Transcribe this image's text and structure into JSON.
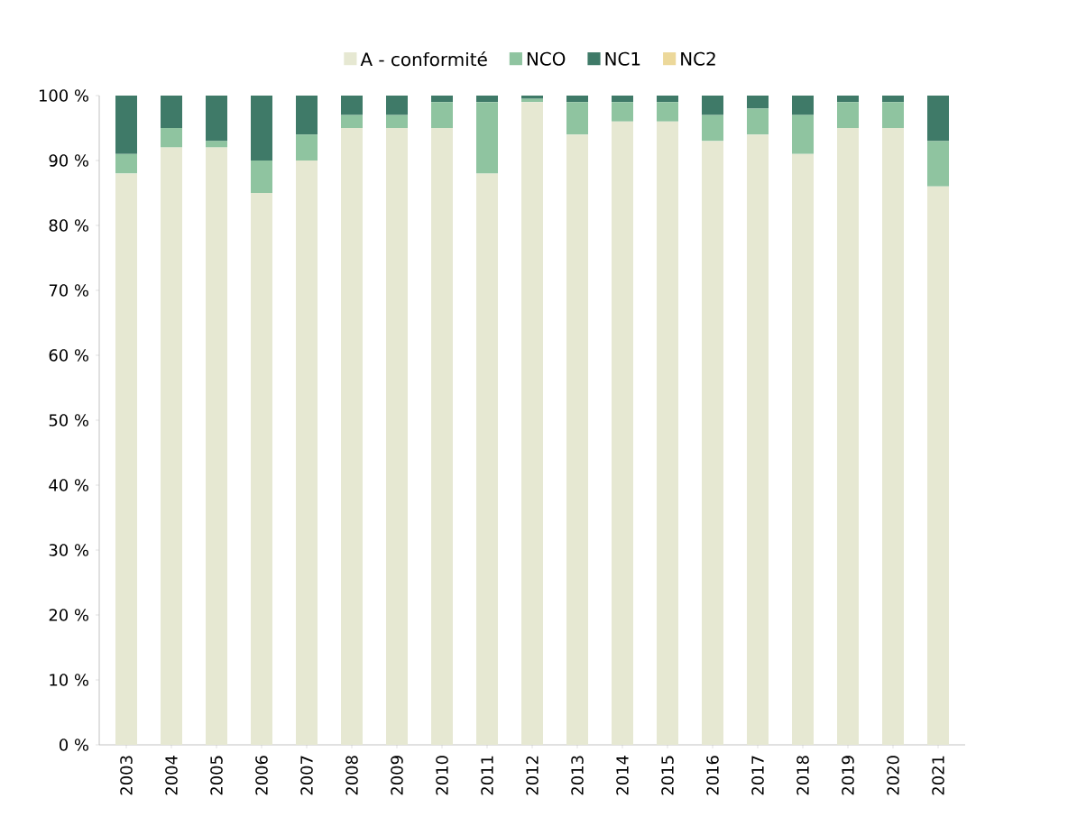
{
  "chart_data": {
    "type": "bar",
    "stacked": true,
    "legend": "top",
    "categories": [
      "2003",
      "2004",
      "2005",
      "2006",
      "2007",
      "2008",
      "2009",
      "2010",
      "2011",
      "2012",
      "2013",
      "2014",
      "2015",
      "2016",
      "2017",
      "2018",
      "2019",
      "2020",
      "2021"
    ],
    "series": [
      {
        "name": "A - conformité",
        "color": "#e6e8d2",
        "values": [
          88,
          92,
          92,
          85,
          90,
          95,
          95,
          95,
          88,
          99,
          94,
          96,
          96,
          93,
          94,
          91,
          95,
          95,
          86
        ]
      },
      {
        "name": "NCO",
        "color": "#8fc4a0",
        "values": [
          3,
          3,
          1,
          5,
          4,
          2,
          2,
          4,
          11,
          0.5,
          5,
          3,
          3,
          4,
          4,
          6,
          4,
          4,
          7
        ]
      },
      {
        "name": "NC1",
        "color": "#3f7a68",
        "values": [
          9,
          5,
          7,
          10,
          6,
          3,
          3,
          1,
          1,
          0.5,
          1,
          1,
          1,
          3,
          2,
          3,
          1,
          1,
          7
        ]
      },
      {
        "name": "NC2",
        "color": "#ecd89a",
        "values": [
          0,
          0,
          0,
          0,
          0,
          0,
          0,
          0,
          0,
          0,
          0,
          0,
          0,
          0,
          0,
          0,
          0,
          0,
          0
        ]
      }
    ],
    "ylim": [
      0,
      100
    ],
    "yticks": [
      {
        "value": 0,
        "label": "0 %"
      },
      {
        "value": 10,
        "label": "10 %"
      },
      {
        "value": 20,
        "label": "20 %"
      },
      {
        "value": 30,
        "label": "30 %"
      },
      {
        "value": 40,
        "label": "40 %"
      },
      {
        "value": 50,
        "label": "50 %"
      },
      {
        "value": 60,
        "label": "60 %"
      },
      {
        "value": 70,
        "label": "70 %"
      },
      {
        "value": 80,
        "label": "80 %"
      },
      {
        "value": 90,
        "label": "90 %"
      },
      {
        "value": 100,
        "label": "100 %"
      }
    ]
  }
}
